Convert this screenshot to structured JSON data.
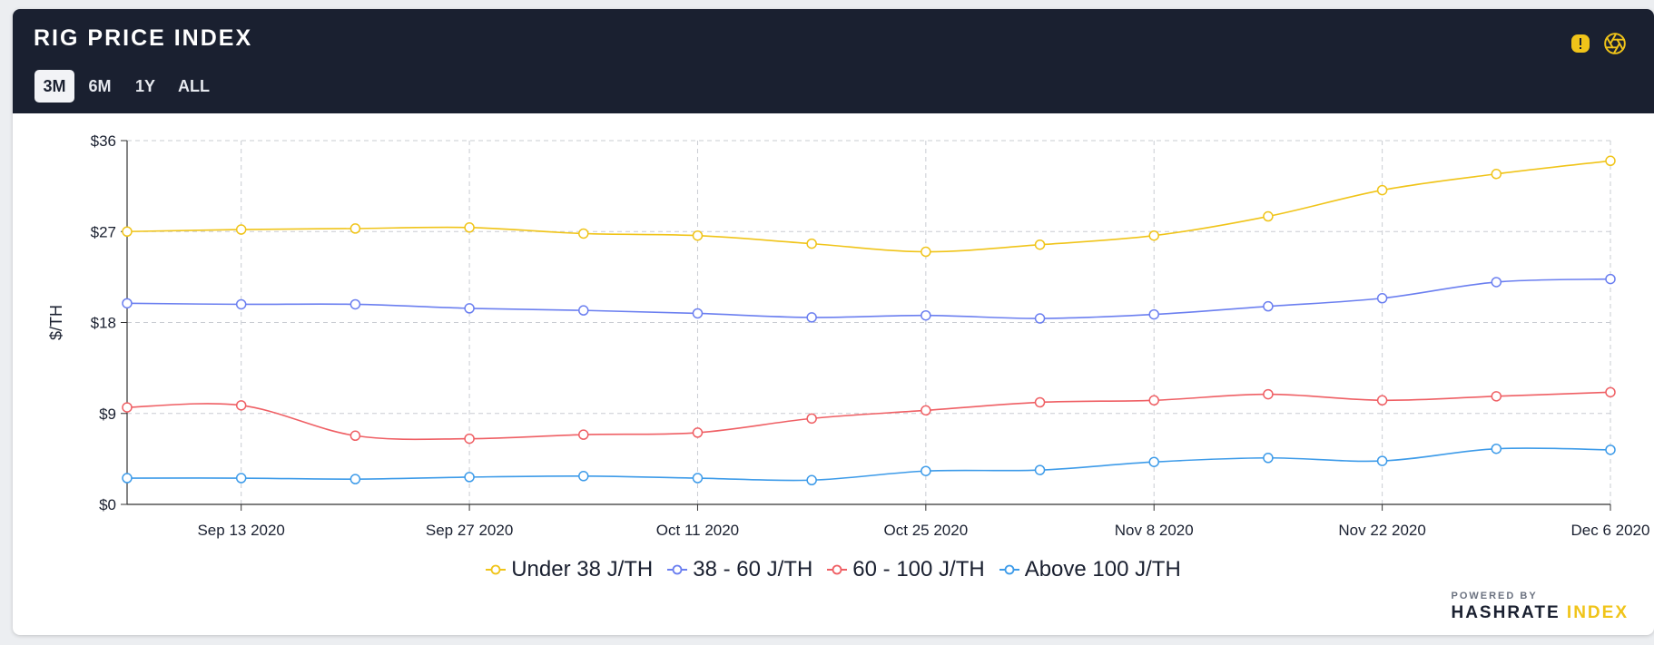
{
  "header": {
    "title": "RIG PRICE INDEX",
    "tabs": [
      "3M",
      "6M",
      "1Y",
      "ALL"
    ],
    "active_tab": "3M",
    "icons": [
      "alert-icon",
      "aperture-icon"
    ]
  },
  "branding": {
    "powered_by": "POWERED BY",
    "brand_main": "HASHRATE",
    "brand_accent": "INDEX"
  },
  "colors": {
    "accent": "#f0c419",
    "header_bg": "#1a2030"
  },
  "chart_data": {
    "type": "line",
    "ylabel": "$/TH",
    "ylim": [
      0,
      36
    ],
    "yticks": [
      "$0",
      "$9",
      "$18",
      "$27",
      "$36"
    ],
    "ytick_values": [
      0,
      9,
      18,
      27,
      36
    ],
    "x": [
      "2020-09-06",
      "2020-09-13",
      "2020-09-20",
      "2020-09-27",
      "2020-10-04",
      "2020-10-11",
      "2020-10-18",
      "2020-10-25",
      "2020-11-01",
      "2020-11-08",
      "2020-11-15",
      "2020-11-22",
      "2020-11-29",
      "2020-12-06"
    ],
    "xtick_labels": [
      {
        "date": "2020-09-13",
        "label": "Sep 13 2020"
      },
      {
        "date": "2020-09-27",
        "label": "Sep 27 2020"
      },
      {
        "date": "2020-10-11",
        "label": "Oct 11 2020"
      },
      {
        "date": "2020-10-25",
        "label": "Oct 25 2020"
      },
      {
        "date": "2020-11-08",
        "label": "Nov 8 2020"
      },
      {
        "date": "2020-11-22",
        "label": "Nov 22 2020"
      },
      {
        "date": "2020-12-06",
        "label": "Dec 6 2020"
      }
    ],
    "grid": true,
    "legend_position": "bottom",
    "series": [
      {
        "name": "Under 38 J/TH",
        "color": "#f0c419",
        "values": [
          27.0,
          27.2,
          27.3,
          27.4,
          26.8,
          26.6,
          25.8,
          25.0,
          25.7,
          26.6,
          28.5,
          31.1,
          32.7,
          34.0
        ]
      },
      {
        "name": "38 - 60 J/TH",
        "color": "#6b7ff0",
        "values": [
          19.9,
          19.8,
          19.8,
          19.4,
          19.2,
          18.9,
          18.5,
          18.7,
          18.4,
          18.8,
          19.6,
          20.4,
          22.0,
          22.3
        ]
      },
      {
        "name": "60 - 100 J/TH",
        "color": "#ef5f64",
        "values": [
          9.6,
          9.8,
          6.8,
          6.5,
          6.9,
          7.1,
          8.5,
          9.3,
          10.1,
          10.3,
          10.9,
          10.3,
          10.7,
          11.1
        ]
      },
      {
        "name": "Above 100 J/TH",
        "color": "#3d9be9",
        "values": [
          2.6,
          2.6,
          2.5,
          2.7,
          2.8,
          2.6,
          2.4,
          3.3,
          3.4,
          4.2,
          4.6,
          4.3,
          5.5,
          5.4
        ]
      }
    ]
  }
}
